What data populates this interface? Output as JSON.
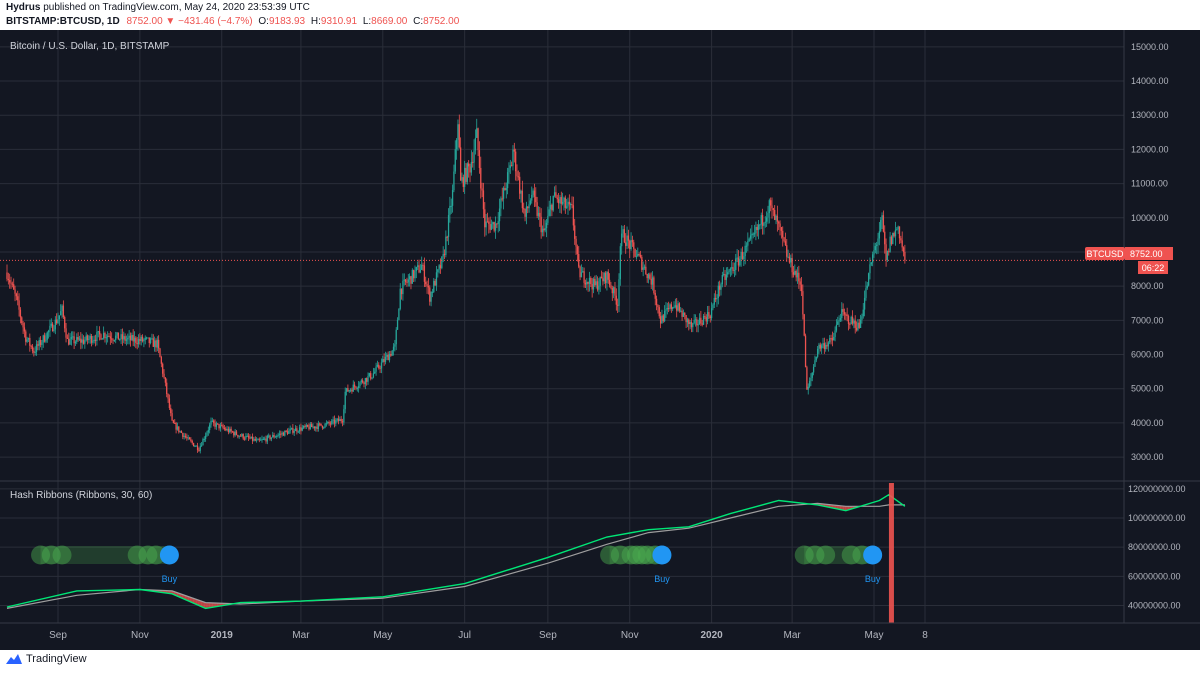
{
  "header": {
    "author": "Hydrus",
    "published_text": "published on TradingView.com, May 24, 2020 23:53:39 UTC",
    "symbol": "BITSTAMP:BTCUSD, 1D",
    "last": "8752.00",
    "change": "−431.46 (−4.7%)",
    "open_label": "O:",
    "open": "9183.93",
    "high_label": "H:",
    "high": "9310.91",
    "low_label": "L:",
    "low": "8669.00",
    "close_label": "C:",
    "close": "8752.00"
  },
  "footer": {
    "brand": "TradingView"
  },
  "colors": {
    "background": "#131722",
    "grid": "#2a2e39",
    "up": "#26a69a",
    "down": "#ef5350",
    "fast_ma": "#00e676",
    "slow_ma": "#9e9e9e",
    "buy": "#2196f3",
    "capitulation": "#4caf50",
    "text": "#b2b5be"
  },
  "chart_data": [
    {
      "type": "candlestick",
      "title": "Bitcoin / U.S. Dollar, 1D, BITSTAMP",
      "ylim": [
        2300,
        15200
      ],
      "yticks": [
        "15000.00",
        "14000.00",
        "13000.00",
        "12000.00",
        "11000.00",
        "10000.00",
        "9000.00",
        "8000.00",
        "7000.00",
        "6000.00",
        "5000.00",
        "4000.00",
        "3000.00"
      ],
      "price_line": 8752,
      "last_price_label": "8752.00",
      "symbol_label": "BTCUSD",
      "countdown": "06:22",
      "price_path": [
        [
          "2018-07-25",
          8400
        ],
        [
          "2018-08-01",
          7600
        ],
        [
          "2018-08-08",
          6500
        ],
        [
          "2018-08-14",
          6100
        ],
        [
          "2018-08-22",
          6500
        ],
        [
          "2018-08-31",
          7000
        ],
        [
          "2018-09-04",
          7300
        ],
        [
          "2018-09-08",
          6400
        ],
        [
          "2018-09-20",
          6400
        ],
        [
          "2018-10-05",
          6600
        ],
        [
          "2018-10-20",
          6450
        ],
        [
          "2018-11-05",
          6400
        ],
        [
          "2018-11-14",
          6300
        ],
        [
          "2018-11-19",
          5300
        ],
        [
          "2018-11-25",
          4000
        ],
        [
          "2018-12-07",
          3500
        ],
        [
          "2018-12-15",
          3250
        ],
        [
          "2018-12-24",
          4000
        ],
        [
          "2019-01-10",
          3700
        ],
        [
          "2019-01-28",
          3450
        ],
        [
          "2019-02-08",
          3600
        ],
        [
          "2019-02-24",
          3800
        ],
        [
          "2019-03-20",
          3950
        ],
        [
          "2019-04-01",
          4100
        ],
        [
          "2019-04-03",
          4900
        ],
        [
          "2019-04-23",
          5400
        ],
        [
          "2019-05-10",
          6200
        ],
        [
          "2019-05-14",
          7900
        ],
        [
          "2019-05-30",
          8600
        ],
        [
          "2019-06-05",
          7700
        ],
        [
          "2019-06-15",
          8800
        ],
        [
          "2019-06-22",
          10700
        ],
        [
          "2019-06-26",
          12900
        ],
        [
          "2019-06-28",
          11000
        ],
        [
          "2019-07-05",
          11500
        ],
        [
          "2019-07-10",
          12400
        ],
        [
          "2019-07-16",
          9800
        ],
        [
          "2019-07-24",
          9800
        ],
        [
          "2019-08-05",
          11600
        ],
        [
          "2019-08-06",
          12000
        ],
        [
          "2019-08-15",
          10000
        ],
        [
          "2019-08-20",
          10700
        ],
        [
          "2019-08-29",
          9500
        ],
        [
          "2019-09-05",
          10600
        ],
        [
          "2019-09-19",
          10200
        ],
        [
          "2019-09-24",
          8400
        ],
        [
          "2019-10-06",
          8000
        ],
        [
          "2019-10-15",
          8300
        ],
        [
          "2019-10-23",
          7500
        ],
        [
          "2019-10-25",
          9200
        ],
        [
          "2019-10-27",
          9500
        ],
        [
          "2019-11-08",
          8800
        ],
        [
          "2019-11-18",
          8100
        ],
        [
          "2019-11-24",
          7000
        ],
        [
          "2019-12-04",
          7500
        ],
        [
          "2019-12-17",
          6800
        ],
        [
          "2019-12-31",
          7200
        ],
        [
          "2020-01-08",
          8100
        ],
        [
          "2020-01-20",
          8700
        ],
        [
          "2020-02-01",
          9400
        ],
        [
          "2020-02-13",
          10350
        ],
        [
          "2020-02-20",
          9700
        ],
        [
          "2020-02-27",
          8800
        ],
        [
          "2020-03-08",
          8000
        ],
        [
          "2020-03-12",
          4900
        ],
        [
          "2020-03-15",
          5300
        ],
        [
          "2020-03-20",
          6200
        ],
        [
          "2020-03-31",
          6400
        ],
        [
          "2020-04-06",
          7200
        ],
        [
          "2020-04-20",
          6800
        ],
        [
          "2020-04-29",
          8700
        ],
        [
          "2020-05-07",
          9900
        ],
        [
          "2020-05-10",
          8700
        ],
        [
          "2020-05-13",
          9300
        ],
        [
          "2020-05-19",
          9750
        ],
        [
          "2020-05-24",
          8752
        ]
      ]
    },
    {
      "type": "line",
      "title": "Hash Ribbons (Ribbons, 30, 60)",
      "ylim": [
        28000000,
        124000000
      ],
      "yticks": [
        "120000000.00",
        "100000000.00",
        "80000000.00",
        "60000000.00",
        "40000000.00"
      ],
      "series": [
        {
          "name": "30",
          "x": [
            "2018-07-25",
            "2018-09-15",
            "2018-11-01",
            "2018-11-25",
            "2018-12-20",
            "2019-01-15",
            "2019-03-01",
            "2019-05-01",
            "2019-07-01",
            "2019-09-01",
            "2019-10-15",
            "2019-11-15",
            "2019-12-15",
            "2020-01-15",
            "2020-02-20",
            "2020-03-20",
            "2020-04-10",
            "2020-05-05",
            "2020-05-12",
            "2020-05-24"
          ],
          "values": [
            39,
            50,
            51,
            48,
            38,
            42,
            43,
            46,
            55,
            73,
            87,
            92,
            94,
            103,
            112,
            109,
            105,
            112,
            116,
            108
          ]
        },
        {
          "name": "60",
          "x": [
            "2018-07-25",
            "2018-09-15",
            "2018-11-01",
            "2018-11-25",
            "2018-12-20",
            "2019-01-15",
            "2019-03-01",
            "2019-05-01",
            "2019-07-01",
            "2019-09-01",
            "2019-10-15",
            "2019-11-15",
            "2019-12-15",
            "2020-01-15",
            "2020-02-20",
            "2020-03-20",
            "2020-04-10",
            "2020-05-05",
            "2020-05-12",
            "2020-05-24"
          ],
          "values": [
            38,
            47,
            51,
            50,
            42,
            41,
            43,
            45,
            53,
            69,
            82,
            90,
            93,
            100,
            108,
            110,
            108,
            108,
            109,
            109
          ]
        }
      ],
      "value_unit": 1000000,
      "signal_groups": [
        {
          "dates": [
            "2018-08-19",
            "2018-08-27",
            "2018-09-04",
            "2018-10-30",
            "2018-11-07",
            "2018-11-13"
          ],
          "buy_date": "2018-11-23",
          "buy_label": "Buy"
        },
        {
          "dates": [
            "2019-10-17",
            "2019-10-25",
            "2019-11-02",
            "2019-11-06",
            "2019-11-10",
            "2019-11-14",
            "2019-11-20"
          ],
          "buy_date": "2019-11-25",
          "buy_label": "Buy"
        },
        {
          "dates": [
            "2020-03-10",
            "2020-03-18",
            "2020-03-26",
            "2020-04-14",
            "2020-04-22"
          ],
          "buy_date": "2020-04-30",
          "buy_label": "Buy"
        }
      ],
      "highlight_date": "2020-05-14"
    }
  ],
  "xaxis": {
    "ticks": [
      {
        "label": "Sep",
        "date": "2018-09-01",
        "bold": false
      },
      {
        "label": "Nov",
        "date": "2018-11-01",
        "bold": false
      },
      {
        "label": "2019",
        "date": "2019-01-01",
        "bold": true
      },
      {
        "label": "Mar",
        "date": "2019-03-01",
        "bold": false
      },
      {
        "label": "May",
        "date": "2019-05-01",
        "bold": false
      },
      {
        "label": "Jul",
        "date": "2019-07-01",
        "bold": false
      },
      {
        "label": "Sep",
        "date": "2019-09-01",
        "bold": false
      },
      {
        "label": "Nov",
        "date": "2019-11-01",
        "bold": false
      },
      {
        "label": "2020",
        "date": "2020-01-01",
        "bold": true
      },
      {
        "label": "Mar",
        "date": "2020-03-01",
        "bold": false
      },
      {
        "label": "May",
        "date": "2020-05-01",
        "bold": false
      },
      {
        "label": "8",
        "date": "2020-06-08",
        "bold": false
      }
    ]
  }
}
